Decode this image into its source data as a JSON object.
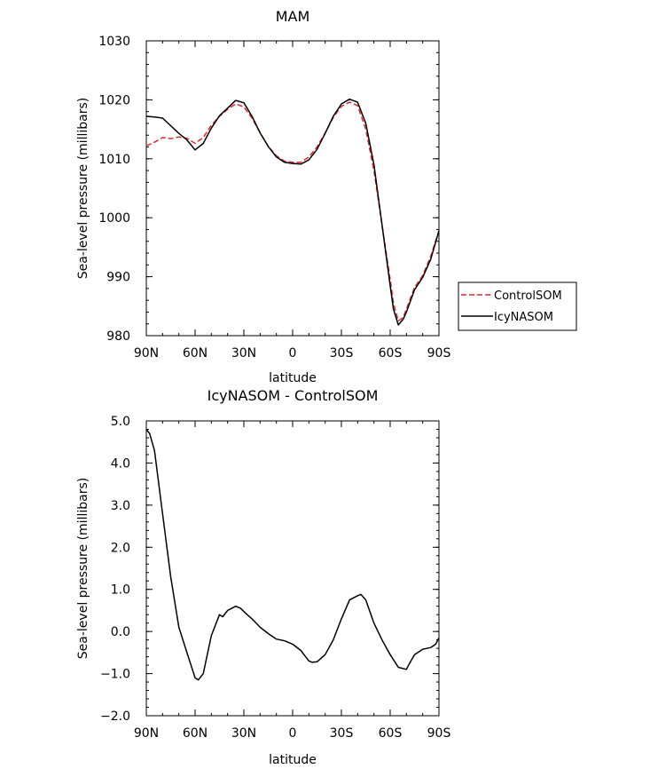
{
  "chart_data": [
    {
      "type": "line",
      "title": "MAM",
      "xlabel": "latitude",
      "ylabel": "Sea-level pressure (millibars)",
      "xlim": [
        90,
        -90
      ],
      "ylim": [
        980,
        1030
      ],
      "xticks": [
        90,
        60,
        30,
        0,
        -30,
        -60,
        -90
      ],
      "xtick_labels": [
        "90N",
        "60N",
        "30N",
        "0",
        "30S",
        "60S",
        "90S"
      ],
      "yticks": [
        980,
        990,
        1000,
        1010,
        1020,
        1030
      ],
      "ytick_labels": [
        "980",
        "990",
        "1000",
        "1010",
        "1020",
        "1030"
      ],
      "legend_position": "right",
      "series": [
        {
          "name": "ControlSOM",
          "color": "#e8252a",
          "dash": "dashed",
          "x": [
            90,
            85,
            80,
            75,
            70,
            65,
            60,
            55,
            50,
            45,
            40,
            35,
            30,
            25,
            20,
            15,
            10,
            5,
            0,
            -5,
            -10,
            -15,
            -20,
            -25,
            -30,
            -35,
            -40,
            -45,
            -50,
            -55,
            -60,
            -62,
            -65,
            -68,
            -70,
            -75,
            -80,
            -85,
            -90
          ],
          "y": [
            1012.2,
            1012.8,
            1013.6,
            1013.4,
            1013.7,
            1013.5,
            1012.6,
            1013.6,
            1015.7,
            1017.2,
            1018.4,
            1019.3,
            1018.8,
            1016.9,
            1014.4,
            1012.1,
            1010.5,
            1009.6,
            1009.4,
            1009.4,
            1010.3,
            1012.0,
            1014.4,
            1017.0,
            1018.9,
            1019.6,
            1019.0,
            1015.0,
            1008.0,
            998.8,
            989.5,
            985.5,
            982.5,
            983.1,
            984.5,
            988.2,
            990.2,
            993.5,
            997.8
          ]
        },
        {
          "name": "IcyNASOM",
          "color": "#000000",
          "dash": "solid",
          "x": [
            90,
            85,
            80,
            75,
            70,
            65,
            60,
            55,
            50,
            45,
            40,
            35,
            30,
            25,
            20,
            15,
            10,
            5,
            0,
            -5,
            -10,
            -15,
            -20,
            -25,
            -30,
            -35,
            -40,
            -45,
            -50,
            -55,
            -60,
            -62,
            -65,
            -68,
            -70,
            -75,
            -80,
            -85,
            -90
          ],
          "y": [
            1017.2,
            1017.1,
            1016.9,
            1015.6,
            1014.3,
            1013.2,
            1011.5,
            1012.6,
            1015.2,
            1017.3,
            1018.6,
            1019.9,
            1019.5,
            1017.2,
            1014.4,
            1012.1,
            1010.3,
            1009.4,
            1009.2,
            1009.1,
            1009.8,
            1011.6,
            1014.3,
            1017.2,
            1019.3,
            1020.1,
            1019.6,
            1016.0,
            1009.0,
            998.8,
            988.5,
            984.5,
            981.8,
            982.8,
            984.0,
            987.8,
            989.9,
            993.0,
            997.8
          ]
        }
      ]
    },
    {
      "type": "line",
      "title": "IcyNASOM - ControlSOM",
      "xlabel": "latitude",
      "ylabel": "Sea-level pressure (millibars)",
      "xlim": [
        90,
        -90
      ],
      "ylim": [
        -2.0,
        5.0
      ],
      "xticks": [
        90,
        60,
        30,
        0,
        -30,
        -60,
        -90
      ],
      "xtick_labels": [
        "90N",
        "60N",
        "30N",
        "0",
        "30S",
        "60S",
        "90S"
      ],
      "yticks": [
        -2.0,
        -1.0,
        0.0,
        1.0,
        2.0,
        3.0,
        4.0,
        5.0
      ],
      "ytick_labels": [
        "−2.0",
        "−1.0",
        "0.0",
        "1.0",
        "2.0",
        "3.0",
        "4.0",
        "5.0"
      ],
      "series": [
        {
          "color": "#000000",
          "dash": "solid",
          "x": [
            90,
            88,
            85,
            80,
            75,
            70,
            65,
            60,
            58,
            55,
            50,
            45,
            43,
            40,
            35,
            32,
            28,
            25,
            20,
            15,
            10,
            5,
            0,
            -5,
            -10,
            -12,
            -15,
            -20,
            -25,
            -30,
            -35,
            -40,
            -42,
            -45,
            -50,
            -55,
            -60,
            -65,
            -70,
            -72,
            -75,
            -80,
            -85,
            -88,
            -90
          ],
          "y": [
            4.8,
            4.7,
            4.3,
            2.8,
            1.3,
            0.1,
            -0.5,
            -1.1,
            -1.15,
            -1.0,
            -0.1,
            0.4,
            0.35,
            0.5,
            0.6,
            0.55,
            0.4,
            0.3,
            0.1,
            -0.05,
            -0.18,
            -0.22,
            -0.3,
            -0.45,
            -0.7,
            -0.73,
            -0.72,
            -0.55,
            -0.2,
            0.3,
            0.75,
            0.85,
            0.88,
            0.75,
            0.2,
            -0.2,
            -0.55,
            -0.85,
            -0.9,
            -0.75,
            -0.55,
            -0.42,
            -0.38,
            -0.3,
            -0.15
          ]
        }
      ]
    }
  ]
}
